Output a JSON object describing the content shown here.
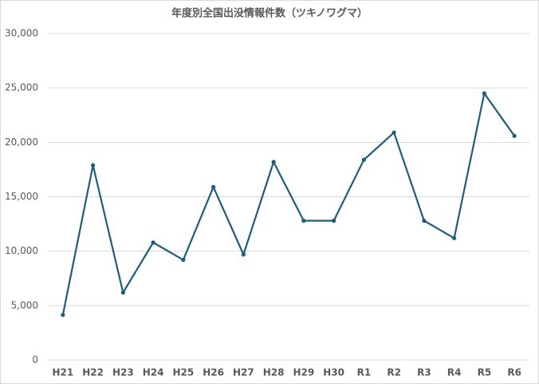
{
  "chart_data": {
    "type": "line",
    "title": "年度別全国出没情報件数（ツキノワグマ）",
    "categories": [
      "H21",
      "H22",
      "H23",
      "H24",
      "H25",
      "H26",
      "H27",
      "H28",
      "H29",
      "H30",
      "R1",
      "R2",
      "R3",
      "R4",
      "R5",
      "R6"
    ],
    "series": [
      {
        "name": "ツキノワグマ",
        "color": "#1f5c7a",
        "values": [
          4150,
          17900,
          6200,
          10800,
          9200,
          15900,
          9700,
          18200,
          12800,
          12800,
          18400,
          20900,
          12800,
          11200,
          24500,
          20600
        ]
      }
    ],
    "ylim": [
      0,
      30000
    ],
    "yticks": [
      0,
      {
        "value": 5000,
        "label": "5,000"
      },
      {
        "value": 10000,
        "label": "10,000"
      },
      {
        "value": 15000,
        "label": "15,000"
      },
      {
        "value": 20000,
        "label": "20,000"
      },
      {
        "value": 25000,
        "label": "25,000"
      },
      {
        "value": 30000,
        "label": "30,000"
      }
    ],
    "grid": true
  }
}
